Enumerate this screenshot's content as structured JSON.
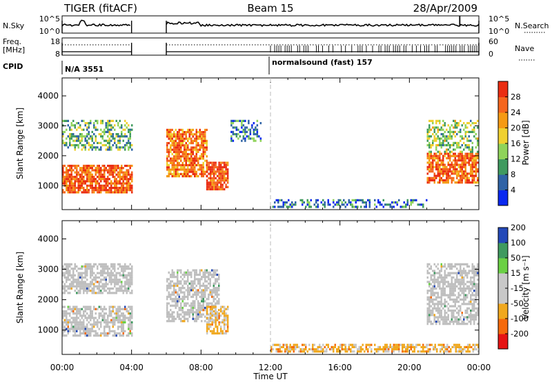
{
  "header": {
    "title": "TIGER (fitACF)",
    "beam": "Beam 15",
    "date": "28/Apr/2009"
  },
  "top_strip": {
    "left_label": "N.Sky",
    "right_label": "N.Search",
    "left_ticks": [
      "10^5",
      "10^0"
    ],
    "right_ticks": [
      "10^5",
      "10^0"
    ]
  },
  "freq_strip": {
    "left_label_line1": "Freq.",
    "left_label_line2": "[MHz]",
    "left_ticks": [
      "18",
      "8"
    ],
    "right_label": "Nave",
    "right_ticks": [
      "60",
      "0"
    ]
  },
  "cpid": {
    "label": "CPID",
    "segments": [
      {
        "text": "N/A 3551",
        "start_hour": 0
      },
      {
        "text": "normalsound (fast) 157",
        "start_hour": 12
      }
    ]
  },
  "colors": {
    "power_scale": [
      "#0a28f0",
      "#2f63a6",
      "#3f9a5f",
      "#8fd35a",
      "#f0d030",
      "#f59a14",
      "#f5661e",
      "#ea2d12"
    ],
    "velocity_scale": [
      "#e61414",
      "#f56a0c",
      "#f0a81e",
      "#c8c8c8",
      "#c8c8c8",
      "#6ad044",
      "#3f9a5f",
      "#2449b8"
    ],
    "ground_scatter": "#bfbfbf"
  },
  "chart_data": [
    {
      "type": "heatmap",
      "panel": "power",
      "ylabel": "Slant Range [km]",
      "yticks": [
        "1000",
        "2000",
        "3000",
        "4000"
      ],
      "ylim": [
        200,
        4600
      ],
      "xlim_hours": [
        0,
        24
      ],
      "colorbar_label": "Power [dB]",
      "colorbar_ticks": [
        "4",
        "8",
        "12",
        "16",
        "20",
        "24",
        "28"
      ],
      "colorbar_range": [
        0,
        32
      ],
      "no_data_intervals_hours": [
        [
          4.0,
          6.0
        ]
      ],
      "echo_regions": [
        {
          "t0": 0.0,
          "t1": 4.0,
          "r0": 800,
          "r1": 1700,
          "level": 27
        },
        {
          "t0": 0.0,
          "t1": 4.0,
          "r0": 2200,
          "r1": 3200,
          "level": 12
        },
        {
          "t0": 6.0,
          "t1": 8.3,
          "r0": 1300,
          "r1": 2900,
          "level": 24
        },
        {
          "t0": 8.3,
          "t1": 9.5,
          "r0": 900,
          "r1": 1800,
          "level": 27
        },
        {
          "t0": 9.7,
          "t1": 11.4,
          "r0": 2500,
          "r1": 3200,
          "level": 8
        },
        {
          "t0": 21.0,
          "t1": 24.0,
          "r0": 1100,
          "r1": 2100,
          "level": 26
        },
        {
          "t0": 21.0,
          "t1": 24.0,
          "r0": 2100,
          "r1": 3200,
          "level": 14
        },
        {
          "t0": 12.0,
          "t1": 21.0,
          "r0": 300,
          "r1": 550,
          "level": 7
        }
      ]
    },
    {
      "type": "heatmap",
      "panel": "velocity",
      "ylabel": "Slant Range [km]",
      "yticks": [
        "1000",
        "2000",
        "3000",
        "4000"
      ],
      "ylim": [
        200,
        4600
      ],
      "xlabel": "Time UT",
      "xticks": [
        "00:00",
        "04:00",
        "08:00",
        "12:00",
        "16:00",
        "20:00",
        "00:00"
      ],
      "xlim_hours": [
        0,
        24
      ],
      "colorbar_label": "Velocity [m s⁻¹]",
      "colorbar_ticks": [
        "-200",
        "-100",
        "-50",
        "-15",
        "15",
        "50",
        "100",
        "200"
      ],
      "colorbar_range": [
        -250,
        250
      ],
      "no_data_intervals_hours": [
        [
          4.0,
          6.0
        ]
      ],
      "echo_regions": [
        {
          "t0": 0.0,
          "t1": 4.0,
          "r0": 800,
          "r1": 1800,
          "kind": "ground"
        },
        {
          "t0": 0.0,
          "t1": 4.0,
          "r0": 2200,
          "r1": 3200,
          "kind": "ground"
        },
        {
          "t0": 6.0,
          "t1": 9.0,
          "r0": 1300,
          "r1": 3000,
          "kind": "ground"
        },
        {
          "t0": 8.3,
          "t1": 9.5,
          "r0": 900,
          "r1": 1800,
          "velocity": -60
        },
        {
          "t0": 21.0,
          "t1": 24.0,
          "r0": 1200,
          "r1": 3200,
          "kind": "ground"
        },
        {
          "t0": 12.0,
          "t1": 24.0,
          "r0": 300,
          "r1": 550,
          "velocity": -70
        }
      ]
    }
  ]
}
